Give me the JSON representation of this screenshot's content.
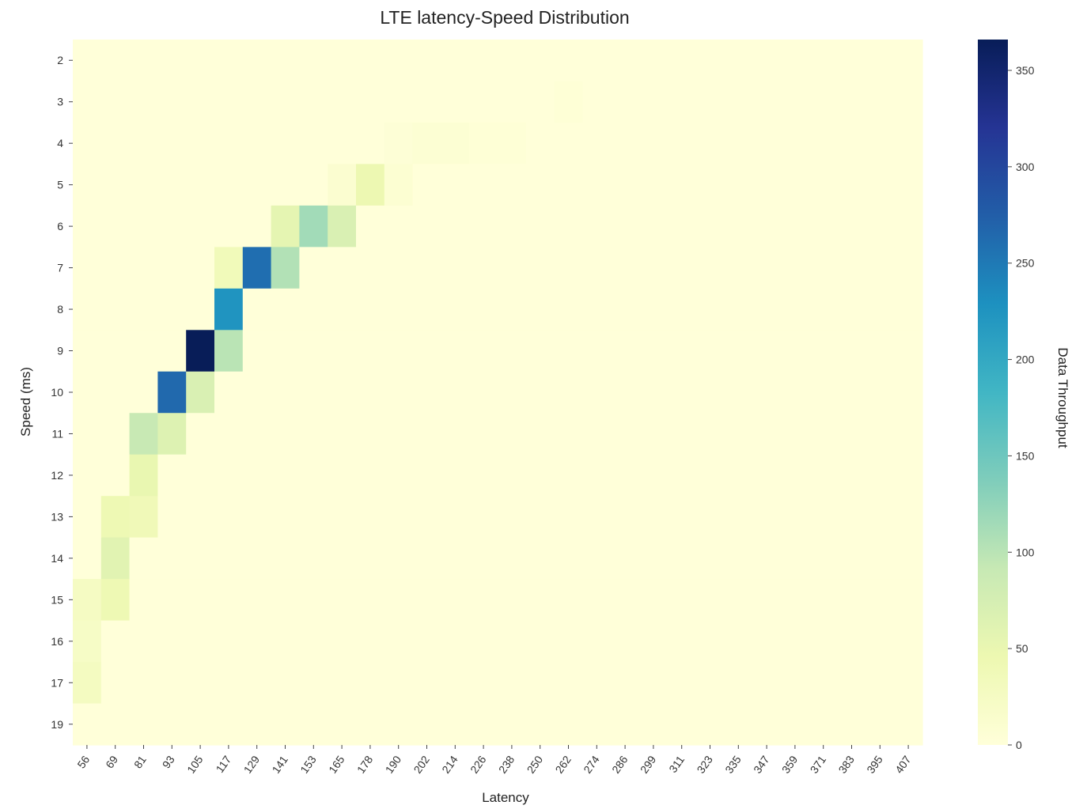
{
  "chart_data": {
    "type": "heatmap",
    "title": "LTE latency-Speed Distribution",
    "xlabel": "Latency",
    "ylabel": "Speed (ms)",
    "colorbar_label": "Data Throughput",
    "colormap": "YlGnBu",
    "colorbar_range": [
      0,
      366
    ],
    "colorbar_ticks": [
      "0",
      "50",
      "100",
      "150",
      "200",
      "250",
      "300",
      "350"
    ],
    "x_categories": [
      "56",
      "69",
      "81",
      "93",
      "105",
      "117",
      "129",
      "141",
      "153",
      "165",
      "178",
      "190",
      "202",
      "214",
      "226",
      "238",
      "250",
      "262",
      "274",
      "286",
      "299",
      "311",
      "323",
      "335",
      "347",
      "359",
      "371",
      "383",
      "395",
      "407"
    ],
    "y_categories": [
      "2",
      "3",
      "4",
      "5",
      "6",
      "7",
      "8",
      "9",
      "10",
      "11",
      "12",
      "13",
      "14",
      "15",
      "16",
      "17",
      "19"
    ],
    "cells": [
      {
        "x": "262",
        "y": "3",
        "value": 3
      },
      {
        "x": "190",
        "y": "4",
        "value": 4
      },
      {
        "x": "202",
        "y": "4",
        "value": 7
      },
      {
        "x": "214",
        "y": "4",
        "value": 7
      },
      {
        "x": "226",
        "y": "4",
        "value": 3
      },
      {
        "x": "238",
        "y": "4",
        "value": 3
      },
      {
        "x": "165",
        "y": "5",
        "value": 10
      },
      {
        "x": "178",
        "y": "5",
        "value": 45
      },
      {
        "x": "190",
        "y": "5",
        "value": 8
      },
      {
        "x": "141",
        "y": "6",
        "value": 55
      },
      {
        "x": "153",
        "y": "6",
        "value": 115
      },
      {
        "x": "165",
        "y": "6",
        "value": 70
      },
      {
        "x": "117",
        "y": "7",
        "value": 35
      },
      {
        "x": "129",
        "y": "7",
        "value": 260
      },
      {
        "x": "141",
        "y": "7",
        "value": 105
      },
      {
        "x": "117",
        "y": "8",
        "value": 225
      },
      {
        "x": "105",
        "y": "9",
        "value": 366
      },
      {
        "x": "117",
        "y": "9",
        "value": 100
      },
      {
        "x": "93",
        "y": "10",
        "value": 265
      },
      {
        "x": "105",
        "y": "10",
        "value": 70
      },
      {
        "x": "81",
        "y": "11",
        "value": 90
      },
      {
        "x": "93",
        "y": "11",
        "value": 65
      },
      {
        "x": "81",
        "y": "12",
        "value": 50
      },
      {
        "x": "69",
        "y": "13",
        "value": 42
      },
      {
        "x": "81",
        "y": "13",
        "value": 38
      },
      {
        "x": "69",
        "y": "14",
        "value": 60
      },
      {
        "x": "56",
        "y": "15",
        "value": 25
      },
      {
        "x": "69",
        "y": "15",
        "value": 42
      },
      {
        "x": "56",
        "y": "16",
        "value": 22
      },
      {
        "x": "56",
        "y": "17",
        "value": 28
      }
    ]
  }
}
